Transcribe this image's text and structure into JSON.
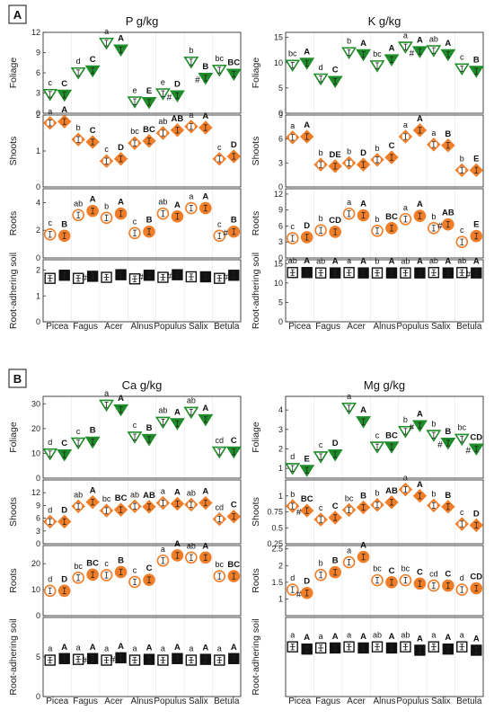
{
  "panels": [
    {
      "letter": "A",
      "elements": [
        "P g/kg",
        "K g/kg"
      ]
    },
    {
      "letter": "B",
      "elements": [
        "Ca g/kg",
        "Mg g/kg"
      ]
    }
  ],
  "row_labels": [
    "Foliage",
    "Shoots",
    "Roots",
    "Root-adhering soil"
  ],
  "species": [
    "Picea",
    "Fagus",
    "Acer",
    "Alnus",
    "Populus",
    "Salix",
    "Betula"
  ],
  "colors": {
    "foliage": "#1e8c28",
    "organ": "#f07d28",
    "soil": "#111111",
    "grid": "#e6e6e6"
  },
  "chart_data": [
    {
      "type": "scatter",
      "element": "P g/kg",
      "organ": "Foliage",
      "ylim": [
        0,
        12
      ],
      "yticks": [
        0,
        3,
        6,
        9,
        12
      ],
      "series": [
        {
          "values": [
            2.8,
            6.0,
            10.4,
            1.7,
            2.9,
            7.6,
            6.4
          ],
          "letters": [
            "c",
            "d",
            "a",
            "e",
            "e",
            "b",
            "bc"
          ]
        },
        {
          "values": [
            2.7,
            6.3,
            9.4,
            1.6,
            2.6,
            5.2,
            5.8
          ],
          "letters": [
            "C",
            "C",
            "A",
            "E",
            "D",
            "B",
            "BC"
          ]
        }
      ],
      "hash": [
        false,
        false,
        false,
        false,
        true,
        true,
        false
      ]
    },
    {
      "type": "scatter",
      "element": "P g/kg",
      "organ": "Shoots",
      "ylim": [
        0,
        2
      ],
      "yticks": [
        0,
        1,
        2
      ],
      "series": [
        {
          "values": [
            1.78,
            1.32,
            0.72,
            1.22,
            1.5,
            1.68,
            0.78
          ],
          "letters": [
            "a",
            "b",
            "c",
            "bc",
            "ab",
            "a",
            "c"
          ]
        },
        {
          "values": [
            1.82,
            1.25,
            0.78,
            1.28,
            1.58,
            1.65,
            0.85
          ],
          "letters": [
            "A",
            "C",
            "D",
            "BC",
            "AB",
            "A",
            "D"
          ]
        }
      ],
      "hash": [
        false,
        false,
        false,
        false,
        false,
        false,
        false
      ]
    },
    {
      "type": "scatter",
      "element": "P g/kg",
      "organ": "Roots",
      "ylim": [
        0,
        5
      ],
      "yticks": [
        0,
        2,
        4
      ],
      "series": [
        {
          "values": [
            1.7,
            3.1,
            2.9,
            1.8,
            3.2,
            3.6,
            1.6
          ],
          "letters": [
            "c",
            "ab",
            "b",
            "c",
            "ab",
            "a",
            "c"
          ]
        },
        {
          "values": [
            1.6,
            3.4,
            3.2,
            1.9,
            3.0,
            3.6,
            1.9
          ],
          "letters": [
            "B",
            "A",
            "A",
            "B",
            "A",
            "A",
            "B"
          ]
        }
      ],
      "hash": [
        false,
        false,
        false,
        false,
        false,
        false,
        true
      ]
    },
    {
      "type": "scatter",
      "element": "P g/kg",
      "organ": "Root-adhering soil",
      "ylim": [
        0,
        2.4
      ],
      "yticks": [
        0,
        1,
        2
      ],
      "series": [
        {
          "values": [
            1.68,
            1.68,
            1.72,
            1.66,
            1.72,
            1.74,
            1.68
          ],
          "letters": [
            "",
            "",
            "",
            "",
            "",
            "",
            ""
          ]
        },
        {
          "values": [
            1.8,
            1.76,
            1.82,
            1.8,
            1.82,
            1.74,
            1.8
          ],
          "letters": [
            "",
            "",
            "",
            "",
            "",
            "",
            ""
          ]
        }
      ],
      "hash": [
        false,
        true,
        false,
        true,
        true,
        false,
        true
      ]
    },
    {
      "type": "scatter",
      "element": "K g/kg",
      "organ": "Foliage",
      "ylim": [
        0,
        16
      ],
      "yticks": [
        0,
        5,
        10,
        15
      ],
      "series": [
        {
          "values": [
            9.5,
            6.8,
            12.0,
            9.4,
            13.1,
            12.4,
            8.8
          ],
          "letters": [
            "bc",
            "d",
            "b",
            "bc",
            "a",
            "ab",
            "c"
          ]
        },
        {
          "values": [
            9.9,
            6.3,
            11.6,
            10.6,
            12.2,
            11.6,
            8.3
          ],
          "letters": [
            "A",
            "C",
            "A",
            "A",
            "A",
            "A",
            "B"
          ]
        }
      ],
      "hash": [
        false,
        false,
        false,
        false,
        true,
        false,
        false
      ]
    },
    {
      "type": "scatter",
      "element": "K g/kg",
      "organ": "Shoots",
      "ylim": [
        0,
        9
      ],
      "yticks": [
        0,
        3,
        6,
        9
      ],
      "series": [
        {
          "values": [
            6.2,
            2.8,
            3.0,
            3.4,
            6.3,
            5.3,
            2.1
          ],
          "letters": [
            "a",
            "b",
            "b",
            "b",
            "a",
            "a",
            "b"
          ]
        },
        {
          "values": [
            6.3,
            2.6,
            2.8,
            3.7,
            7.1,
            5.2,
            2.1
          ],
          "letters": [
            "A",
            "DE",
            "D",
            "C",
            "A",
            "B",
            "E"
          ]
        }
      ],
      "hash": [
        false,
        false,
        false,
        false,
        false,
        false,
        false
      ]
    },
    {
      "type": "scatter",
      "element": "K g/kg",
      "organ": "Roots",
      "ylim": [
        0,
        13
      ],
      "yticks": [
        0,
        3,
        6,
        9,
        12
      ],
      "series": [
        {
          "values": [
            3.7,
            5.2,
            8.3,
            5.1,
            7.3,
            5.6,
            3.0
          ],
          "letters": [
            "c",
            "b",
            "a",
            "b",
            "a",
            "b",
            "c"
          ]
        },
        {
          "values": [
            3.9,
            4.9,
            8.0,
            5.6,
            7.9,
            6.3,
            4.1
          ],
          "letters": [
            "D",
            "CD",
            "A",
            "BC",
            "A",
            "AB",
            "E"
          ]
        }
      ],
      "hash": [
        false,
        false,
        false,
        false,
        false,
        true,
        false
      ]
    },
    {
      "type": "scatter",
      "element": "K g/kg",
      "organ": "Root-adhering soil",
      "ylim": [
        0,
        16
      ],
      "yticks": [
        0,
        5,
        10,
        15
      ],
      "series": [
        {
          "values": [
            12.7,
            12.6,
            12.7,
            12.6,
            12.6,
            12.7,
            12.7
          ],
          "letters": [
            "ab",
            "ab",
            "a",
            "b",
            "ab",
            "ab",
            "ab"
          ]
        },
        {
          "values": [
            12.7,
            12.6,
            12.6,
            12.6,
            12.6,
            12.6,
            12.6
          ],
          "letters": [
            "A",
            "A",
            "A",
            "A",
            "A",
            "A",
            "A"
          ]
        }
      ],
      "hash": [
        false,
        false,
        false,
        false,
        false,
        false,
        true
      ]
    },
    {
      "type": "scatter",
      "element": "Ca g/kg",
      "organ": "Foliage",
      "ylim": [
        0,
        33
      ],
      "yticks": [
        0,
        10,
        20,
        30
      ],
      "series": [
        {
          "values": [
            9.8,
            14.2,
            29.5,
            16.6,
            22.6,
            26.6,
            10.6
          ],
          "letters": [
            "d",
            "c",
            "a",
            "c",
            "ab",
            "ab",
            "cd"
          ]
        },
        {
          "values": [
            9.4,
            14.6,
            27.6,
            15.6,
            22.0,
            23.6,
            10.6
          ],
          "letters": [
            "C",
            "B",
            "A",
            "B",
            "A",
            "A",
            "C"
          ]
        }
      ],
      "hash": [
        false,
        false,
        false,
        false,
        false,
        false,
        false
      ]
    },
    {
      "type": "scatter",
      "element": "Ca g/kg",
      "organ": "Shoots",
      "ylim": [
        0,
        15
      ],
      "yticks": [
        0,
        3,
        6,
        9,
        12
      ],
      "series": [
        {
          "values": [
            5.2,
            8.8,
            7.8,
            8.8,
            9.6,
            9.2,
            5.8
          ],
          "letters": [
            "d",
            "ab",
            "bc",
            "ab",
            "a",
            "ab",
            "cd"
          ]
        },
        {
          "values": [
            5.2,
            9.8,
            8.0,
            8.7,
            9.4,
            9.6,
            6.4
          ],
          "letters": [
            "D",
            "A",
            "BC",
            "AB",
            "A",
            "A",
            "C"
          ]
        }
      ],
      "hash": [
        false,
        false,
        false,
        false,
        false,
        false,
        false
      ]
    },
    {
      "type": "scatter",
      "element": "Ca g/kg",
      "organ": "Roots",
      "ylim": [
        0,
        27
      ],
      "yticks": [
        0,
        10,
        20
      ],
      "series": [
        {
          "values": [
            9.6,
            14.6,
            15.6,
            13.0,
            21.2,
            22.4,
            15.2
          ],
          "letters": [
            "d",
            "bc",
            "c",
            "c",
            "a",
            "ab",
            "bc"
          ]
        },
        {
          "values": [
            9.6,
            15.8,
            16.8,
            13.8,
            23.2,
            22.4,
            15.2
          ],
          "letters": [
            "D",
            "BC",
            "B",
            "C",
            "A",
            "A",
            "BC"
          ]
        }
      ],
      "hash": [
        false,
        false,
        false,
        false,
        false,
        false,
        false
      ]
    },
    {
      "type": "scatter",
      "element": "Ca g/kg",
      "organ": "Root-adhering soil",
      "ylim": [
        0,
        10
      ],
      "yticks": [
        0,
        5
      ],
      "series": [
        {
          "values": [
            4.6,
            4.7,
            4.6,
            4.6,
            4.6,
            4.6,
            4.6
          ],
          "letters": [
            "a",
            "a",
            "a",
            "a",
            "a",
            "a",
            "a"
          ]
        },
        {
          "values": [
            4.8,
            4.8,
            4.9,
            4.7,
            4.8,
            4.7,
            4.8
          ],
          "letters": [
            "A",
            "A",
            "A",
            "A",
            "A",
            "A",
            "A"
          ]
        }
      ],
      "hash": [
        false,
        true,
        true,
        false,
        false,
        false,
        false
      ]
    },
    {
      "type": "scatter",
      "element": "Mg g/kg",
      "organ": "Foliage",
      "ylim": [
        0.5,
        4.7
      ],
      "yticks": [
        1,
        2,
        3,
        4
      ],
      "series": [
        {
          "values": [
            1.0,
            1.6,
            4.1,
            2.1,
            2.9,
            2.7,
            2.5
          ],
          "letters": [
            "d",
            "c",
            "a",
            "c",
            "b",
            "b",
            "bc"
          ]
        },
        {
          "values": [
            0.9,
            1.7,
            3.4,
            2.1,
            3.2,
            2.3,
            2.0
          ],
          "letters": [
            "E",
            "D",
            "A",
            "BC",
            "A",
            "B",
            "CD"
          ]
        }
      ],
      "hash": [
        false,
        false,
        false,
        false,
        true,
        true,
        true
      ]
    },
    {
      "type": "scatter",
      "element": "Mg g/kg",
      "organ": "Shoots",
      "ylim": [
        0.25,
        1.25
      ],
      "yticks": [
        0.25,
        0.5,
        0.75,
        1.0
      ],
      "series": [
        {
          "values": [
            0.84,
            0.63,
            0.78,
            0.86,
            1.1,
            0.85,
            0.56
          ],
          "letters": [
            "b",
            "c",
            "bc",
            "b",
            "a",
            "b",
            "c"
          ]
        },
        {
          "values": [
            0.77,
            0.66,
            0.82,
            0.9,
            1.0,
            0.83,
            0.54
          ],
          "letters": [
            "BC",
            "C",
            "B",
            "AB",
            "A",
            "B",
            "D"
          ]
        }
      ],
      "hash": [
        true,
        false,
        false,
        false,
        false,
        false,
        false
      ]
    },
    {
      "type": "scatter",
      "element": "Mg g/kg",
      "organ": "Roots",
      "ylim": [
        0.5,
        2.6
      ],
      "yticks": [
        1.0,
        1.5,
        2.0,
        2.5
      ],
      "series": [
        {
          "values": [
            1.28,
            1.72,
            2.1,
            1.56,
            1.56,
            1.4,
            1.28
          ],
          "letters": [
            "d",
            "b",
            "a",
            "bc",
            "bc",
            "cd",
            "d"
          ]
        },
        {
          "values": [
            1.18,
            1.8,
            2.26,
            1.5,
            1.46,
            1.4,
            1.32
          ],
          "letters": [
            "D",
            "B",
            "A",
            "C",
            "C",
            "C",
            "CD"
          ]
        }
      ],
      "hash": [
        true,
        false,
        false,
        false,
        false,
        false,
        false
      ]
    },
    {
      "type": "scatter",
      "element": "Mg g/kg",
      "organ": "Root-adhering soil",
      "ylim": [
        0,
        7
      ],
      "yticks": [],
      "series": [
        {
          "values": [
            4.4,
            4.3,
            4.4,
            4.4,
            4.4,
            4.4,
            4.4
          ],
          "letters": [
            "a",
            "a",
            "a",
            "ab",
            "ab",
            "a",
            "a"
          ]
        },
        {
          "values": [
            4.2,
            4.3,
            4.3,
            4.3,
            4.1,
            4.2,
            4.1
          ],
          "letters": [
            "A",
            "A",
            "A",
            "A",
            "A",
            "A",
            "A"
          ]
        }
      ],
      "hash": [
        false,
        false,
        false,
        false,
        false,
        false,
        false
      ]
    }
  ]
}
